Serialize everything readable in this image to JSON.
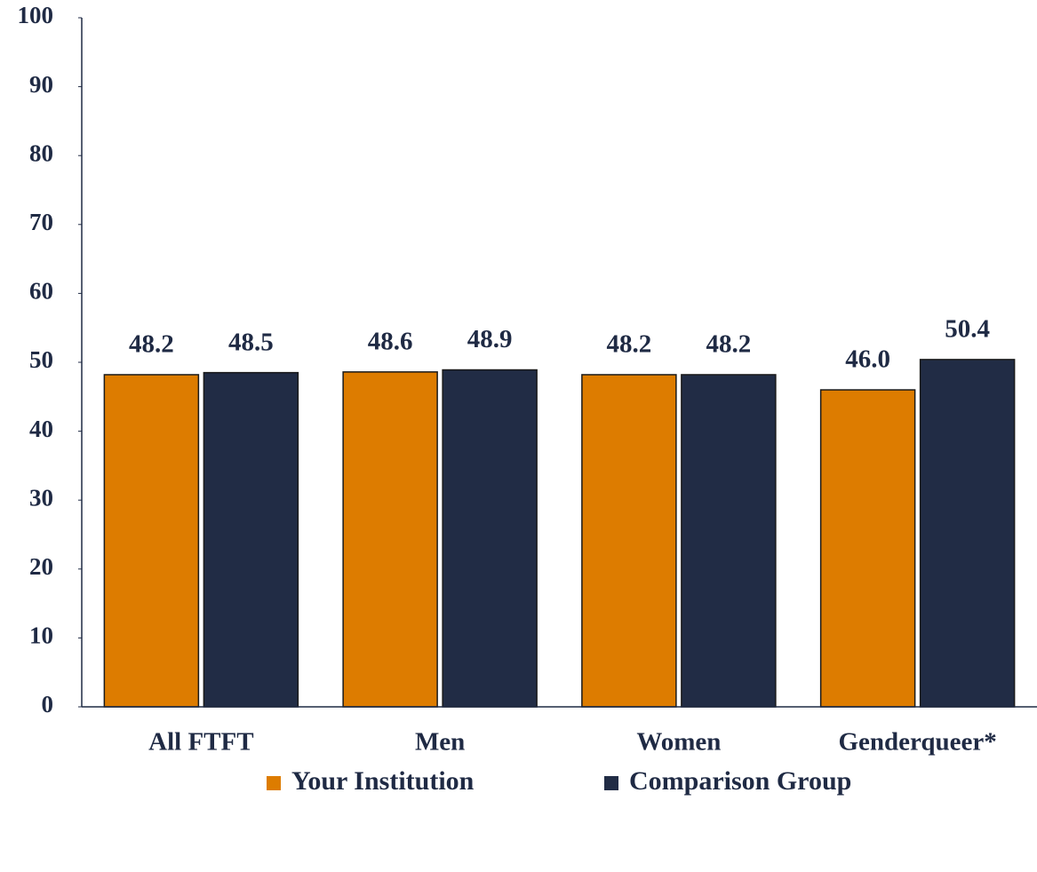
{
  "chart_data": {
    "type": "bar",
    "categories": [
      "All FTFT",
      "Men",
      "Women",
      "Genderqueer*"
    ],
    "series": [
      {
        "name": "Your Institution",
        "color": "#dd7c00",
        "values": [
          48.2,
          48.6,
          48.2,
          46.0
        ],
        "value_labels": [
          "48.2",
          "48.6",
          "48.2",
          "46.0"
        ]
      },
      {
        "name": "Comparison Group",
        "color": "#212c45",
        "values": [
          48.5,
          48.9,
          48.2,
          50.4
        ],
        "value_labels": [
          "48.5",
          "48.9",
          "48.2",
          "50.4"
        ]
      }
    ],
    "ylim": [
      0,
      100
    ],
    "yticks": [
      0,
      10,
      20,
      30,
      40,
      50,
      60,
      70,
      80,
      90,
      100
    ],
    "grid": false,
    "legend": "bottom"
  }
}
